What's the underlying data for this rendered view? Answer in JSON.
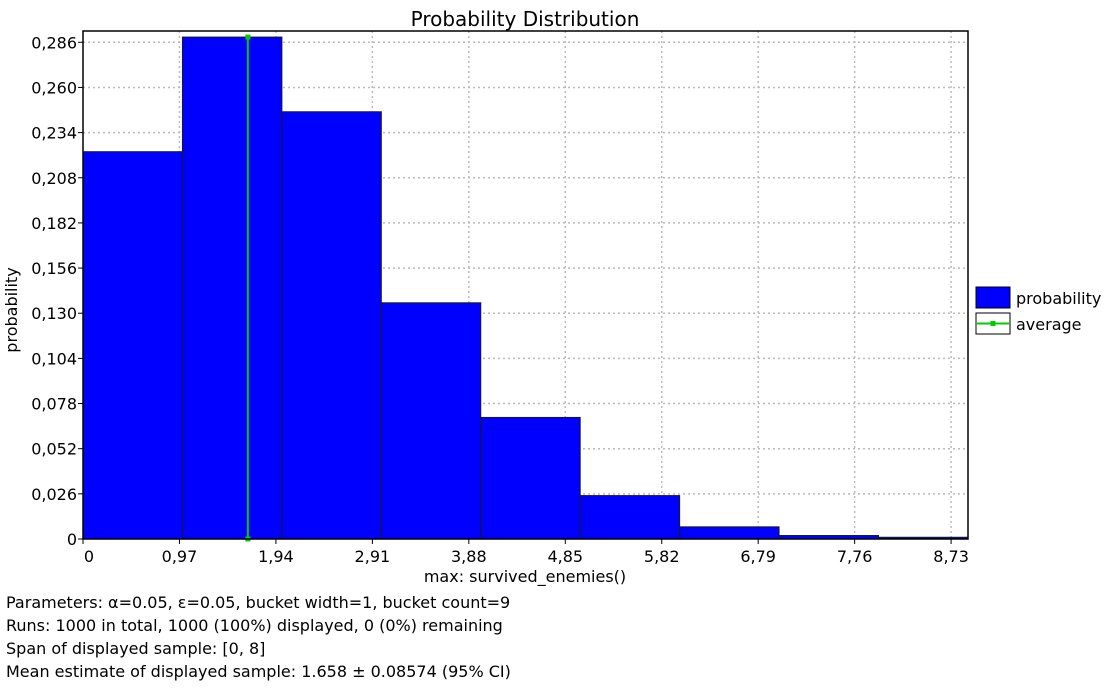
{
  "chart_data": {
    "type": "bar",
    "title": "Probability Distribution",
    "xlabel": "max: survived_enemies()",
    "ylabel": "probability",
    "xlim": [
      0,
      8.9
    ],
    "ylim": [
      0,
      0.2925
    ],
    "xticks": [
      "0",
      "0,97",
      "1,94",
      "2,91",
      "3,88",
      "4,85",
      "5,82",
      "6,79",
      "7,76",
      "8,73"
    ],
    "yticks": [
      "0",
      "0,026",
      "0,052",
      "0,078",
      "0,104",
      "0,130",
      "0,156",
      "0,182",
      "0,208",
      "0,234",
      "0,260",
      "0,286"
    ],
    "grid": true,
    "legend_position": "right",
    "colors": {
      "bars": "#0000ff",
      "average": "#00cc00"
    },
    "series": [
      {
        "name": "probability",
        "bins": [
          {
            "x0": 0,
            "x1": 1,
            "value": 0.223
          },
          {
            "x0": 1,
            "x1": 2,
            "value": 0.289
          },
          {
            "x0": 2,
            "x1": 3,
            "value": 0.246
          },
          {
            "x0": 3,
            "x1": 4,
            "value": 0.136
          },
          {
            "x0": 4,
            "x1": 5,
            "value": 0.07
          },
          {
            "x0": 5,
            "x1": 6,
            "value": 0.025
          },
          {
            "x0": 6,
            "x1": 7,
            "value": 0.007
          },
          {
            "x0": 7,
            "x1": 8,
            "value": 0.002
          },
          {
            "x0": 8,
            "x1": 9,
            "value": 0.001
          }
        ]
      },
      {
        "name": "average",
        "x": 1.658
      }
    ]
  },
  "info": {
    "parameters": "Parameters: α=0.05, ε=0.05, bucket width=1, bucket count=9",
    "runs": "Runs: 1000 in total, 1000 (100%) displayed, 0 (0%) remaining",
    "span": "Span of displayed sample: [0, 8]",
    "mean": "Mean estimate of displayed sample: 1.658 ± 0.08574 (95% CI)"
  }
}
